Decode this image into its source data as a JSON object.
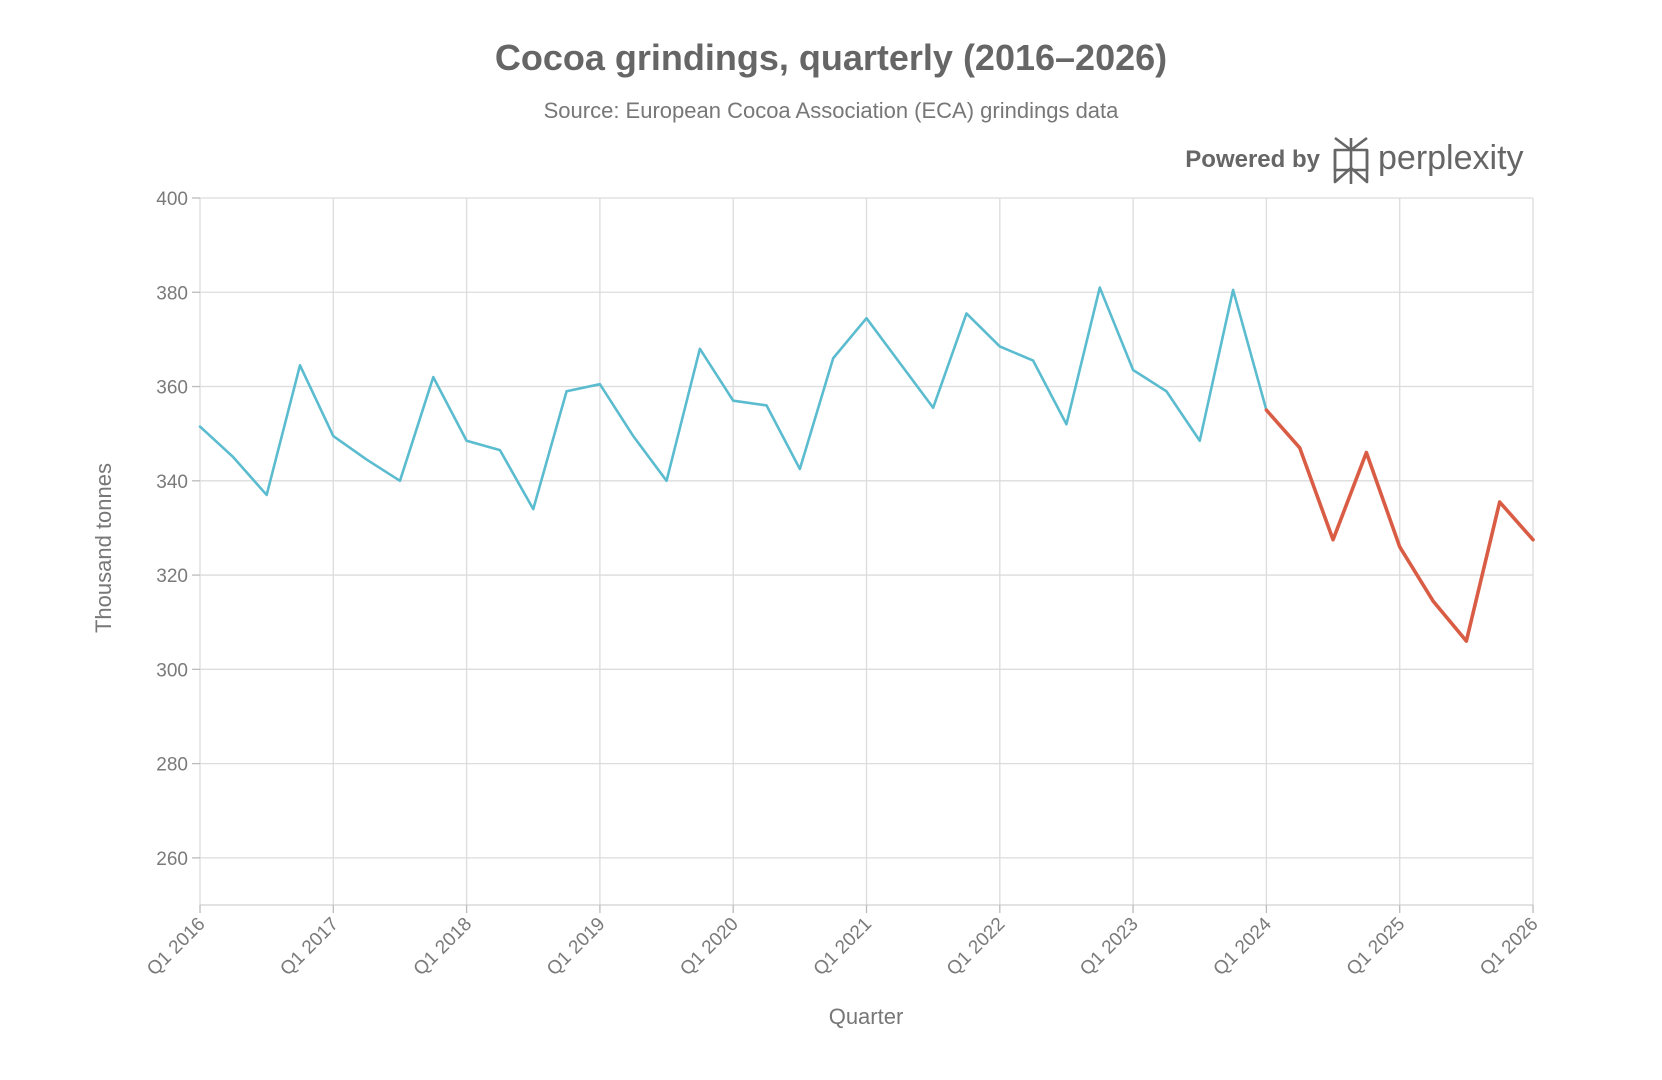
{
  "branding": {
    "powered_by": "Powered by",
    "name": "perplexity",
    "logo_icon": "perplexity-logo-icon"
  },
  "chart_data": {
    "type": "line",
    "title": "Cocoa grindings, quarterly (2016–2026)",
    "subtitle": "Source: European Cocoa Association (ECA) grindings data",
    "xlabel": "Quarter",
    "ylabel": "Thousand tonnes",
    "ylim": [
      250,
      400
    ],
    "yticks": [
      260,
      280,
      300,
      320,
      340,
      360,
      380,
      400
    ],
    "x_tick_labels": [
      "Q1 2016",
      "Q1 2017",
      "Q1 2018",
      "Q1 2019",
      "Q1 2020",
      "Q1 2021",
      "Q1 2022",
      "Q1 2023",
      "Q1 2024",
      "Q1 2025",
      "Q1 2026"
    ],
    "grid": true,
    "series": [
      {
        "color": "#5bbccf",
        "x": [
          "Q1 2016",
          "Q2 2016",
          "Q3 2016",
          "Q4 2016",
          "Q1 2017",
          "Q2 2017",
          "Q3 2017",
          "Q4 2017",
          "Q1 2018",
          "Q2 2018",
          "Q3 2018",
          "Q4 2018",
          "Q1 2019",
          "Q2 2019",
          "Q3 2019",
          "Q4 2019",
          "Q1 2020",
          "Q2 2020",
          "Q3 2020",
          "Q4 2020",
          "Q1 2021",
          "Q2 2021",
          "Q3 2021",
          "Q4 2021",
          "Q1 2022",
          "Q2 2022",
          "Q3 2022",
          "Q4 2022",
          "Q1 2023",
          "Q2 2023",
          "Q3 2023",
          "Q4 2023",
          "Q1 2024"
        ],
        "values": [
          351.5,
          345,
          337,
          364.5,
          349.5,
          344.5,
          340,
          362,
          348.5,
          346.5,
          334,
          359,
          360.5,
          349.5,
          340,
          368,
          357,
          356,
          342.5,
          366,
          374.5,
          365,
          355.5,
          375.5,
          368.5,
          365.5,
          352,
          381,
          363.5,
          359,
          348.5,
          380.5,
          355
        ]
      },
      {
        "color": "#d95c45",
        "x": [
          "Q1 2024",
          "Q2 2024",
          "Q3 2024",
          "Q4 2024",
          "Q1 2025",
          "Q2 2025",
          "Q3 2025",
          "Q4 2025",
          "Q1 2026"
        ],
        "values": [
          355,
          347,
          327.5,
          346,
          326,
          314.5,
          306,
          335.5,
          327.5
        ]
      }
    ]
  }
}
